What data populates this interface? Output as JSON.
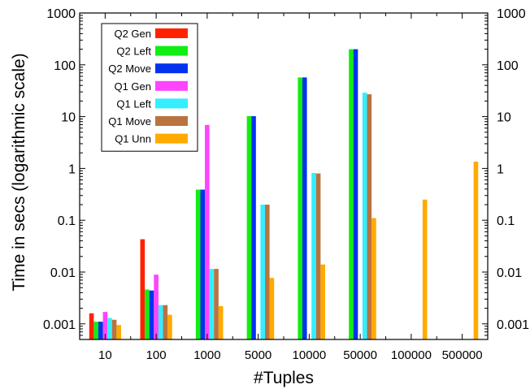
{
  "chart_data": {
    "type": "bar",
    "xlabel": "#Tuples",
    "ylabel": "Time in secs (logarithmic scale)",
    "yscale": "log",
    "ylim": [
      0.0005,
      1000
    ],
    "y_ticks": [
      {
        "value": 0.001,
        "label": "0.001"
      },
      {
        "value": 0.01,
        "label": "0.01"
      },
      {
        "value": 0.1,
        "label": "0.1"
      },
      {
        "value": 1,
        "label": "1"
      },
      {
        "value": 10,
        "label": "10"
      },
      {
        "value": 100,
        "label": "100"
      },
      {
        "value": 1000,
        "label": "1000"
      }
    ],
    "y_ticks_mirrored_right": true,
    "grid": false,
    "legend": "top-left",
    "categories": [
      "10",
      "100",
      "1000",
      "5000",
      "10000",
      "50000",
      "100000",
      "500000"
    ],
    "series": [
      {
        "name": "Q2 Gen",
        "color": "#ff2200",
        "values": [
          0.0016,
          0.043,
          null,
          null,
          null,
          null,
          null,
          null
        ]
      },
      {
        "name": "Q2 Left",
        "color": "#11ee11",
        "values": [
          0.0011,
          0.0046,
          0.39,
          10.2,
          57,
          200,
          null,
          null
        ]
      },
      {
        "name": "Q2 Move",
        "color": "#0033ee",
        "values": [
          0.0011,
          0.0044,
          0.39,
          10.2,
          57,
          200,
          null,
          null
        ]
      },
      {
        "name": "Q1 Gen",
        "color": "#ff44ff",
        "values": [
          0.0017,
          0.0089,
          6.9,
          null,
          null,
          null,
          null,
          null
        ]
      },
      {
        "name": "Q1 Left",
        "color": "#33eeff",
        "values": [
          0.0013,
          0.0023,
          0.0115,
          0.2,
          0.82,
          29,
          null,
          null
        ]
      },
      {
        "name": "Q1 Move",
        "color": "#b87340",
        "values": [
          0.0012,
          0.0023,
          0.0115,
          0.2,
          0.8,
          27,
          null,
          null
        ]
      },
      {
        "name": "Q1 Unn",
        "color": "#ffaa00",
        "values": [
          0.00095,
          0.0015,
          0.0022,
          0.0077,
          0.014,
          0.11,
          0.25,
          1.35
        ]
      }
    ]
  }
}
